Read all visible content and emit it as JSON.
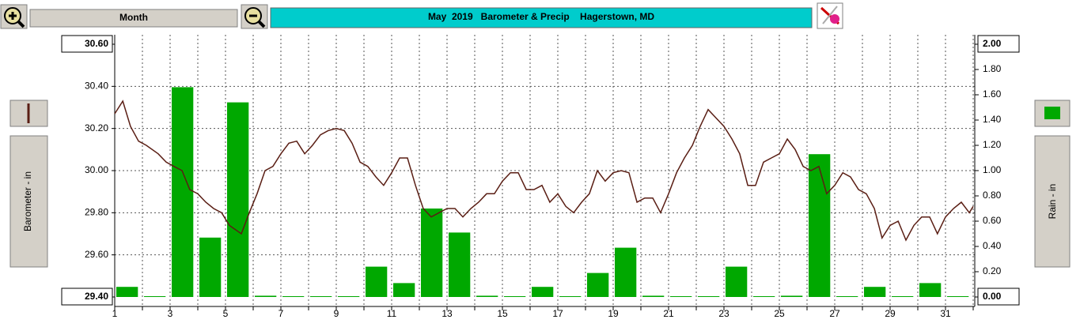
{
  "toolbar": {
    "period": "Month"
  },
  "chart_data": {
    "type": "combo",
    "title": "May  2019   Barometer & Precip    Hagerstown, MD",
    "y_label": "Barometer - in",
    "y2_label": "Rain - in",
    "xlim": [
      1,
      32
    ],
    "xticks": [
      1,
      3,
      5,
      7,
      9,
      11,
      13,
      15,
      17,
      19,
      21,
      23,
      25,
      27,
      29,
      31
    ],
    "xminor": [
      2,
      4,
      6,
      8,
      10,
      12,
      14,
      16,
      18,
      20,
      22,
      24,
      26,
      28,
      30,
      32
    ],
    "ylim": [
      29.4,
      30.6
    ],
    "yticks": [
      {
        "value": 29.4,
        "label": "29.40"
      },
      {
        "value": 29.6,
        "label": "29.60"
      },
      {
        "value": 29.8,
        "label": "29.80"
      },
      {
        "value": 30.0,
        "label": "30.00"
      },
      {
        "value": 30.2,
        "label": "30.20"
      },
      {
        "value": 30.4,
        "label": "30.40"
      },
      {
        "value": 30.6,
        "label": "30.60"
      }
    ],
    "y2lim": [
      0,
      2
    ],
    "y2ticks": [
      {
        "value": 0,
        "label": "0.00"
      },
      {
        "value": 0.2,
        "label": "0.20"
      },
      {
        "value": 0.4,
        "label": "0.40"
      },
      {
        "value": 0.6,
        "label": "0.60"
      },
      {
        "value": 0.8,
        "label": "0.80"
      },
      {
        "value": 1.0,
        "label": "1.00"
      },
      {
        "value": 1.2,
        "label": "1.20"
      },
      {
        "value": 1.4,
        "label": "1.40"
      },
      {
        "value": 1.6,
        "label": "1.60"
      },
      {
        "value": 1.8,
        "label": "1.80"
      },
      {
        "value": 2.0,
        "label": "2.00"
      }
    ],
    "grid": true,
    "series": [
      {
        "type": "line",
        "color": "#5a1e14",
        "x": [
          1,
          1.29,
          1.57,
          1.86,
          2.14,
          2.57,
          2.86,
          3.14,
          3.43,
          3.71,
          4,
          4.29,
          4.57,
          4.86,
          5.14,
          5.57,
          5.86,
          6.14,
          6.43,
          6.71,
          7,
          7.29,
          7.57,
          7.86,
          8.14,
          8.43,
          8.71,
          9,
          9.29,
          9.57,
          9.86,
          10.14,
          10.43,
          10.71,
          11,
          11.29,
          11.57,
          11.86,
          12.14,
          12.43,
          12.71,
          13,
          13.29,
          13.57,
          13.86,
          14.14,
          14.43,
          14.71,
          15,
          15.29,
          15.57,
          15.86,
          16.14,
          16.43,
          16.71,
          17,
          17.29,
          17.57,
          17.86,
          18.14,
          18.43,
          18.71,
          19,
          19.29,
          19.57,
          19.86,
          20.14,
          20.43,
          20.71,
          21,
          21.29,
          21.57,
          21.86,
          22.14,
          22.43,
          22.71,
          23,
          23.29,
          23.57,
          23.86,
          24.14,
          24.43,
          24.71,
          25,
          25.29,
          25.57,
          25.86,
          26.14,
          26.43,
          26.71,
          27,
          27.29,
          27.57,
          27.86,
          28.14,
          28.43,
          28.71,
          29,
          29.29,
          29.57,
          29.86,
          30.14,
          30.43,
          30.71,
          31,
          31.29,
          31.57,
          31.86,
          32
        ],
        "values": [
          30.27,
          30.33,
          30.21,
          30.14,
          30.12,
          30.08,
          30.04,
          30.02,
          30.0,
          29.91,
          29.89,
          29.85,
          29.82,
          29.8,
          29.74,
          29.7,
          29.8,
          29.89,
          30.0,
          30.02,
          30.08,
          30.13,
          30.14,
          30.08,
          30.12,
          30.17,
          30.19,
          30.2,
          30.19,
          30.13,
          30.04,
          30.02,
          29.97,
          29.93,
          29.99,
          30.06,
          30.06,
          29.93,
          29.82,
          29.78,
          29.8,
          29.82,
          29.82,
          29.78,
          29.82,
          29.85,
          29.89,
          29.89,
          29.95,
          29.99,
          29.99,
          29.91,
          29.91,
          29.93,
          29.85,
          29.89,
          29.83,
          29.8,
          29.85,
          29.89,
          30.0,
          29.95,
          29.99,
          30.0,
          29.99,
          29.85,
          29.87,
          29.87,
          29.8,
          29.89,
          29.99,
          30.06,
          30.12,
          30.21,
          30.29,
          30.25,
          30.21,
          30.15,
          30.08,
          29.93,
          29.93,
          30.04,
          30.06,
          30.08,
          30.15,
          30.1,
          30.02,
          30.0,
          30.02,
          29.89,
          29.93,
          29.99,
          29.97,
          29.91,
          29.89,
          29.82,
          29.68,
          29.74,
          29.76,
          29.67,
          29.74,
          29.78,
          29.78,
          29.7,
          29.78,
          29.82,
          29.85,
          29.8,
          29.83
        ]
      },
      {
        "type": "bar",
        "axis": "y2",
        "color": "#00a800",
        "x": [
          1,
          2,
          3,
          4,
          5,
          6,
          7,
          8,
          9,
          10,
          11,
          12,
          13,
          14,
          15,
          16,
          17,
          18,
          19,
          20,
          21,
          22,
          23,
          24,
          25,
          26,
          27,
          28,
          29,
          30,
          31
        ],
        "values": [
          0.08,
          0,
          1.66,
          0.47,
          1.54,
          0.01,
          0,
          0,
          0,
          0.24,
          0.11,
          0.7,
          0.51,
          0.01,
          0,
          0.08,
          0,
          0.19,
          0.39,
          0.01,
          0,
          0,
          0.24,
          0,
          0.01,
          1.13,
          0,
          0.08,
          0,
          0.11,
          0
        ]
      }
    ]
  }
}
